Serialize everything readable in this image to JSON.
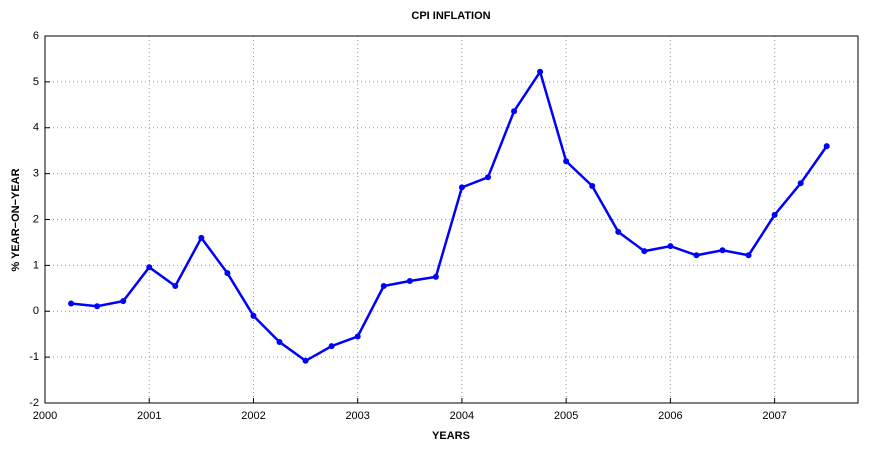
{
  "chart_data": {
    "type": "line",
    "title": "CPI INFLATION",
    "x_label": "YEARS",
    "y_label": "% YEAR−ON−YEAR",
    "x": [
      2000.25,
      2000.5,
      2000.75,
      2001,
      2001.25,
      2001.5,
      2001.75,
      2002,
      2002.25,
      2002.5,
      2002.75,
      2003,
      2003.25,
      2003.5,
      2003.75,
      2004,
      2004.25,
      2004.5,
      2004.75,
      2005,
      2005.25,
      2005.5,
      2005.75,
      2006,
      2006.25,
      2006.5,
      2006.75,
      2007,
      2007.25,
      2007.5
    ],
    "values": [
      0.17,
      0.11,
      0.22,
      0.96,
      0.55,
      1.6,
      0.83,
      -0.1,
      -0.67,
      -1.08,
      -0.76,
      -0.55,
      0.55,
      0.66,
      0.75,
      2.7,
      2.92,
      4.36,
      5.22,
      3.27,
      2.73,
      1.73,
      1.31,
      1.42,
      1.22,
      1.33,
      1.22,
      2.1,
      2.79,
      3.6
    ],
    "color": "#0000ff",
    "xlim": [
      2000,
      2007.8
    ],
    "xticks": [
      2000,
      2001,
      2002,
      2003,
      2004,
      2005,
      2006,
      2007
    ],
    "ylim": [
      -2,
      6
    ],
    "yticks": [
      -2,
      -1,
      0,
      1,
      2,
      3,
      4,
      5,
      6
    ],
    "grid": true
  }
}
